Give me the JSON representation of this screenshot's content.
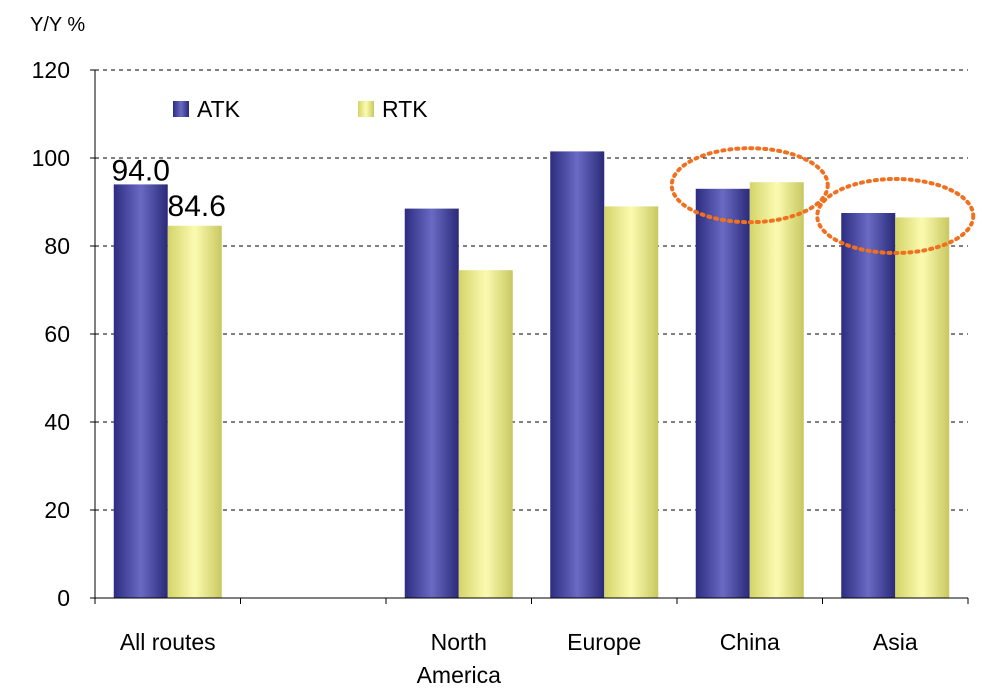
{
  "chart_data": {
    "type": "bar",
    "title": "",
    "unit_label": "Y/Y %",
    "ylim": [
      0,
      120
    ],
    "yticks": [
      0,
      20,
      40,
      60,
      80,
      100,
      120
    ],
    "grid": "dashed horizontal",
    "legend_position": "top-left",
    "categories": [
      [
        "All routes"
      ],
      [
        ""
      ],
      [
        "North",
        "America"
      ],
      [
        "Europe"
      ],
      [
        "China"
      ],
      [
        "Asia"
      ]
    ],
    "series": [
      {
        "name": "ATK",
        "color": "#3b3b9a",
        "values": [
          94.0,
          null,
          88.5,
          101.5,
          93.0,
          87.5
        ]
      },
      {
        "name": "RTK",
        "color": "#e8e888",
        "values": [
          84.6,
          null,
          74.5,
          89.0,
          94.5,
          86.5
        ]
      }
    ],
    "data_labels": [
      {
        "series": 0,
        "category": 0,
        "text": "94.0"
      },
      {
        "series": 1,
        "category": 0,
        "text": "84.6"
      }
    ],
    "highlights": [
      {
        "category": 4,
        "color": "#f07020",
        "style": "dotted ellipse"
      },
      {
        "category": 5,
        "color": "#f07020",
        "style": "dotted ellipse"
      }
    ]
  }
}
